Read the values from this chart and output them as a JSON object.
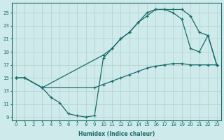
{
  "background_color": "#ceeaea",
  "grid_color": "#b0d0ce",
  "line_color": "#1a6b6b",
  "xlabel": "Humidex (Indice chaleur)",
  "xlim": [
    -0.5,
    23.5
  ],
  "ylim": [
    8.5,
    26.5
  ],
  "yticks": [
    9,
    11,
    13,
    15,
    17,
    19,
    21,
    23,
    25
  ],
  "xticks": [
    0,
    1,
    2,
    3,
    4,
    5,
    6,
    7,
    8,
    9,
    10,
    11,
    12,
    13,
    14,
    15,
    16,
    17,
    18,
    19,
    20,
    21,
    22,
    23
  ],
  "line1_x": [
    0,
    1,
    3,
    10,
    11,
    12,
    13,
    14,
    15,
    16,
    17,
    18,
    19,
    20,
    21,
    22,
    23
  ],
  "line1_y": [
    15,
    15,
    13.5,
    18.5,
    19.5,
    21.0,
    22.0,
    23.5,
    24.5,
    25.5,
    25.5,
    25.5,
    25.5,
    24.5,
    22.0,
    21.5,
    17.0
  ],
  "line2_x": [
    0,
    1,
    3,
    4,
    5,
    6,
    7,
    8,
    9,
    10,
    11,
    12,
    13,
    14,
    15,
    16,
    17,
    18,
    19,
    20,
    21,
    22,
    23
  ],
  "line2_y": [
    15,
    15,
    13.5,
    12.0,
    11.2,
    9.5,
    9.2,
    9.0,
    9.2,
    18.0,
    19.5,
    21.0,
    22.0,
    23.5,
    25.0,
    25.5,
    25.5,
    25.0,
    24.0,
    19.5,
    19.0,
    21.5,
    17.0
  ],
  "line3_x": [
    0,
    1,
    3,
    9,
    10,
    11,
    12,
    13,
    14,
    15,
    16,
    17,
    18,
    19,
    20,
    21,
    22,
    23
  ],
  "line3_y": [
    15,
    15,
    13.5,
    13.5,
    14.0,
    14.5,
    15.0,
    15.5,
    16.0,
    16.5,
    16.8,
    17.0,
    17.2,
    17.2,
    17.0,
    17.0,
    17.0,
    17.0
  ]
}
